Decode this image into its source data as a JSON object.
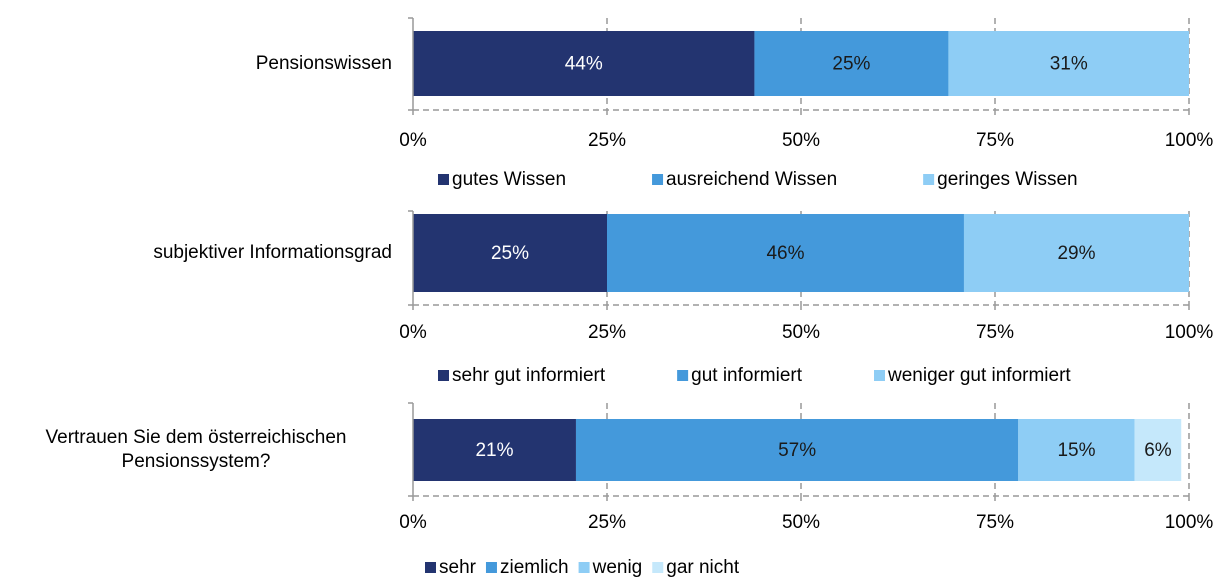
{
  "chart_data": [
    {
      "type": "bar",
      "orientation": "horizontal",
      "stacked": true,
      "categories": [
        "Pensionswissen"
      ],
      "series": [
        {
          "name": "gutes Wissen",
          "color": "#233470",
          "values": [
            44
          ],
          "value_labels": [
            "44%"
          ]
        },
        {
          "name": "ausreichend Wissen",
          "color": "#4499db",
          "values": [
            25
          ],
          "value_labels": [
            "25%"
          ]
        },
        {
          "name": "geringes Wissen",
          "color": "#8ecdf5",
          "values": [
            31
          ],
          "value_labels": [
            "31%"
          ]
        }
      ],
      "xlim": [
        0,
        100
      ],
      "xticks": [
        {
          "value": 0,
          "label": "0%"
        },
        {
          "value": 25,
          "label": "25%"
        },
        {
          "value": 50,
          "label": "50%"
        },
        {
          "value": 75,
          "label": "75%"
        },
        {
          "value": 100,
          "label": "100%"
        }
      ],
      "grid": true,
      "legend": "bottom"
    },
    {
      "type": "bar",
      "orientation": "horizontal",
      "stacked": true,
      "categories": [
        "subjektiver Informationsgrad"
      ],
      "series": [
        {
          "name": "sehr gut informiert",
          "color": "#233470",
          "values": [
            25
          ],
          "value_labels": [
            "25%"
          ]
        },
        {
          "name": "gut informiert",
          "color": "#4499db",
          "values": [
            46
          ],
          "value_labels": [
            "46%"
          ]
        },
        {
          "name": "weniger gut informiert",
          "color": "#8ecdf5",
          "values": [
            29
          ],
          "value_labels": [
            "29%"
          ]
        }
      ],
      "xlim": [
        0,
        100
      ],
      "xticks": [
        {
          "value": 0,
          "label": "0%"
        },
        {
          "value": 25,
          "label": "25%"
        },
        {
          "value": 50,
          "label": "50%"
        },
        {
          "value": 75,
          "label": "75%"
        },
        {
          "value": 100,
          "label": "100%"
        }
      ],
      "grid": true,
      "legend": "bottom"
    },
    {
      "type": "bar",
      "orientation": "horizontal",
      "stacked": true,
      "categories": [
        "Vertrauen Sie dem österreichischen Pensionssystem?"
      ],
      "series": [
        {
          "name": "sehr",
          "color": "#233470",
          "values": [
            21
          ],
          "value_labels": [
            "21%"
          ]
        },
        {
          "name": "ziemlich",
          "color": "#4499db",
          "values": [
            57
          ],
          "value_labels": [
            "57%"
          ]
        },
        {
          "name": "wenig",
          "color": "#8ecdf5",
          "values": [
            15
          ],
          "value_labels": [
            "15%"
          ]
        },
        {
          "name": "gar nicht",
          "color": "#c5e8fb",
          "values": [
            6
          ],
          "value_labels": [
            "6%"
          ]
        }
      ],
      "xlim": [
        0,
        100
      ],
      "xticks": [
        {
          "value": 0,
          "label": "0%"
        },
        {
          "value": 25,
          "label": "25%"
        },
        {
          "value": 50,
          "label": "50%"
        },
        {
          "value": 75,
          "label": "75%"
        },
        {
          "value": 100,
          "label": "100%"
        }
      ],
      "grid": true,
      "legend": "bottom"
    }
  ]
}
